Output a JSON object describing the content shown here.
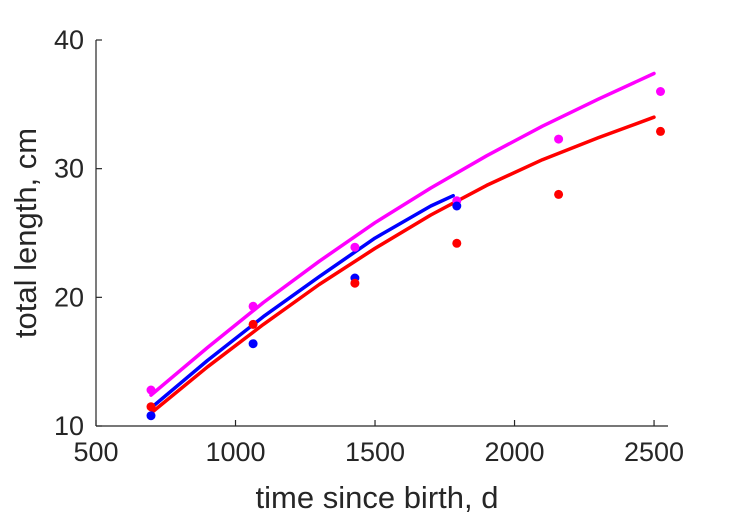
{
  "chart_data": {
    "type": "scatter",
    "title": "",
    "xlabel": "time since birth, d",
    "ylabel": "total length, cm",
    "xlim": [
      500,
      2550
    ],
    "ylim": [
      10,
      40
    ],
    "x_ticks": [
      500,
      1000,
      1500,
      2000,
      2500
    ],
    "y_ticks": [
      10,
      20,
      30,
      40
    ],
    "x_tick_labels": [
      "500",
      "1000",
      "1500",
      "2000",
      "2500"
    ],
    "y_tick_labels": [
      "10",
      "20",
      "30",
      "40"
    ],
    "grid": false,
    "series": [
      {
        "color": "#ff00ff",
        "points": [
          [
            697,
            12.8
          ],
          [
            1063,
            19.3
          ],
          [
            1428,
            23.9
          ],
          [
            1793,
            27.5
          ],
          [
            2158,
            32.3
          ],
          [
            2523,
            36.0
          ]
        ],
        "curve": [
          [
            697,
            12.4
          ],
          [
            900,
            16.1
          ],
          [
            1100,
            19.6
          ],
          [
            1300,
            22.8
          ],
          [
            1500,
            25.8
          ],
          [
            1700,
            28.5
          ],
          [
            1900,
            31.0
          ],
          [
            2100,
            33.3
          ],
          [
            2300,
            35.4
          ],
          [
            2500,
            37.4
          ]
        ]
      },
      {
        "color": "#0000ff",
        "points": [
          [
            697,
            10.8
          ],
          [
            1063,
            16.4
          ],
          [
            1428,
            21.5
          ],
          [
            1793,
            27.1
          ]
        ],
        "curve": [
          [
            697,
            11.4
          ],
          [
            900,
            15.1
          ],
          [
            1100,
            18.5
          ],
          [
            1300,
            21.6
          ],
          [
            1500,
            24.6
          ],
          [
            1700,
            27.1
          ],
          [
            1780,
            27.9
          ]
        ]
      },
      {
        "color": "#ff0000",
        "points": [
          [
            697,
            11.5
          ],
          [
            1063,
            17.9
          ],
          [
            1428,
            21.1
          ],
          [
            1793,
            24.2
          ],
          [
            2158,
            28.0
          ],
          [
            2523,
            32.9
          ]
        ],
        "curve": [
          [
            697,
            11.0
          ],
          [
            900,
            14.6
          ],
          [
            1100,
            17.9
          ],
          [
            1300,
            21.0
          ],
          [
            1500,
            23.8
          ],
          [
            1700,
            26.4
          ],
          [
            1900,
            28.7
          ],
          [
            2100,
            30.7
          ],
          [
            2300,
            32.4
          ],
          [
            2500,
            34.0
          ]
        ]
      }
    ]
  }
}
